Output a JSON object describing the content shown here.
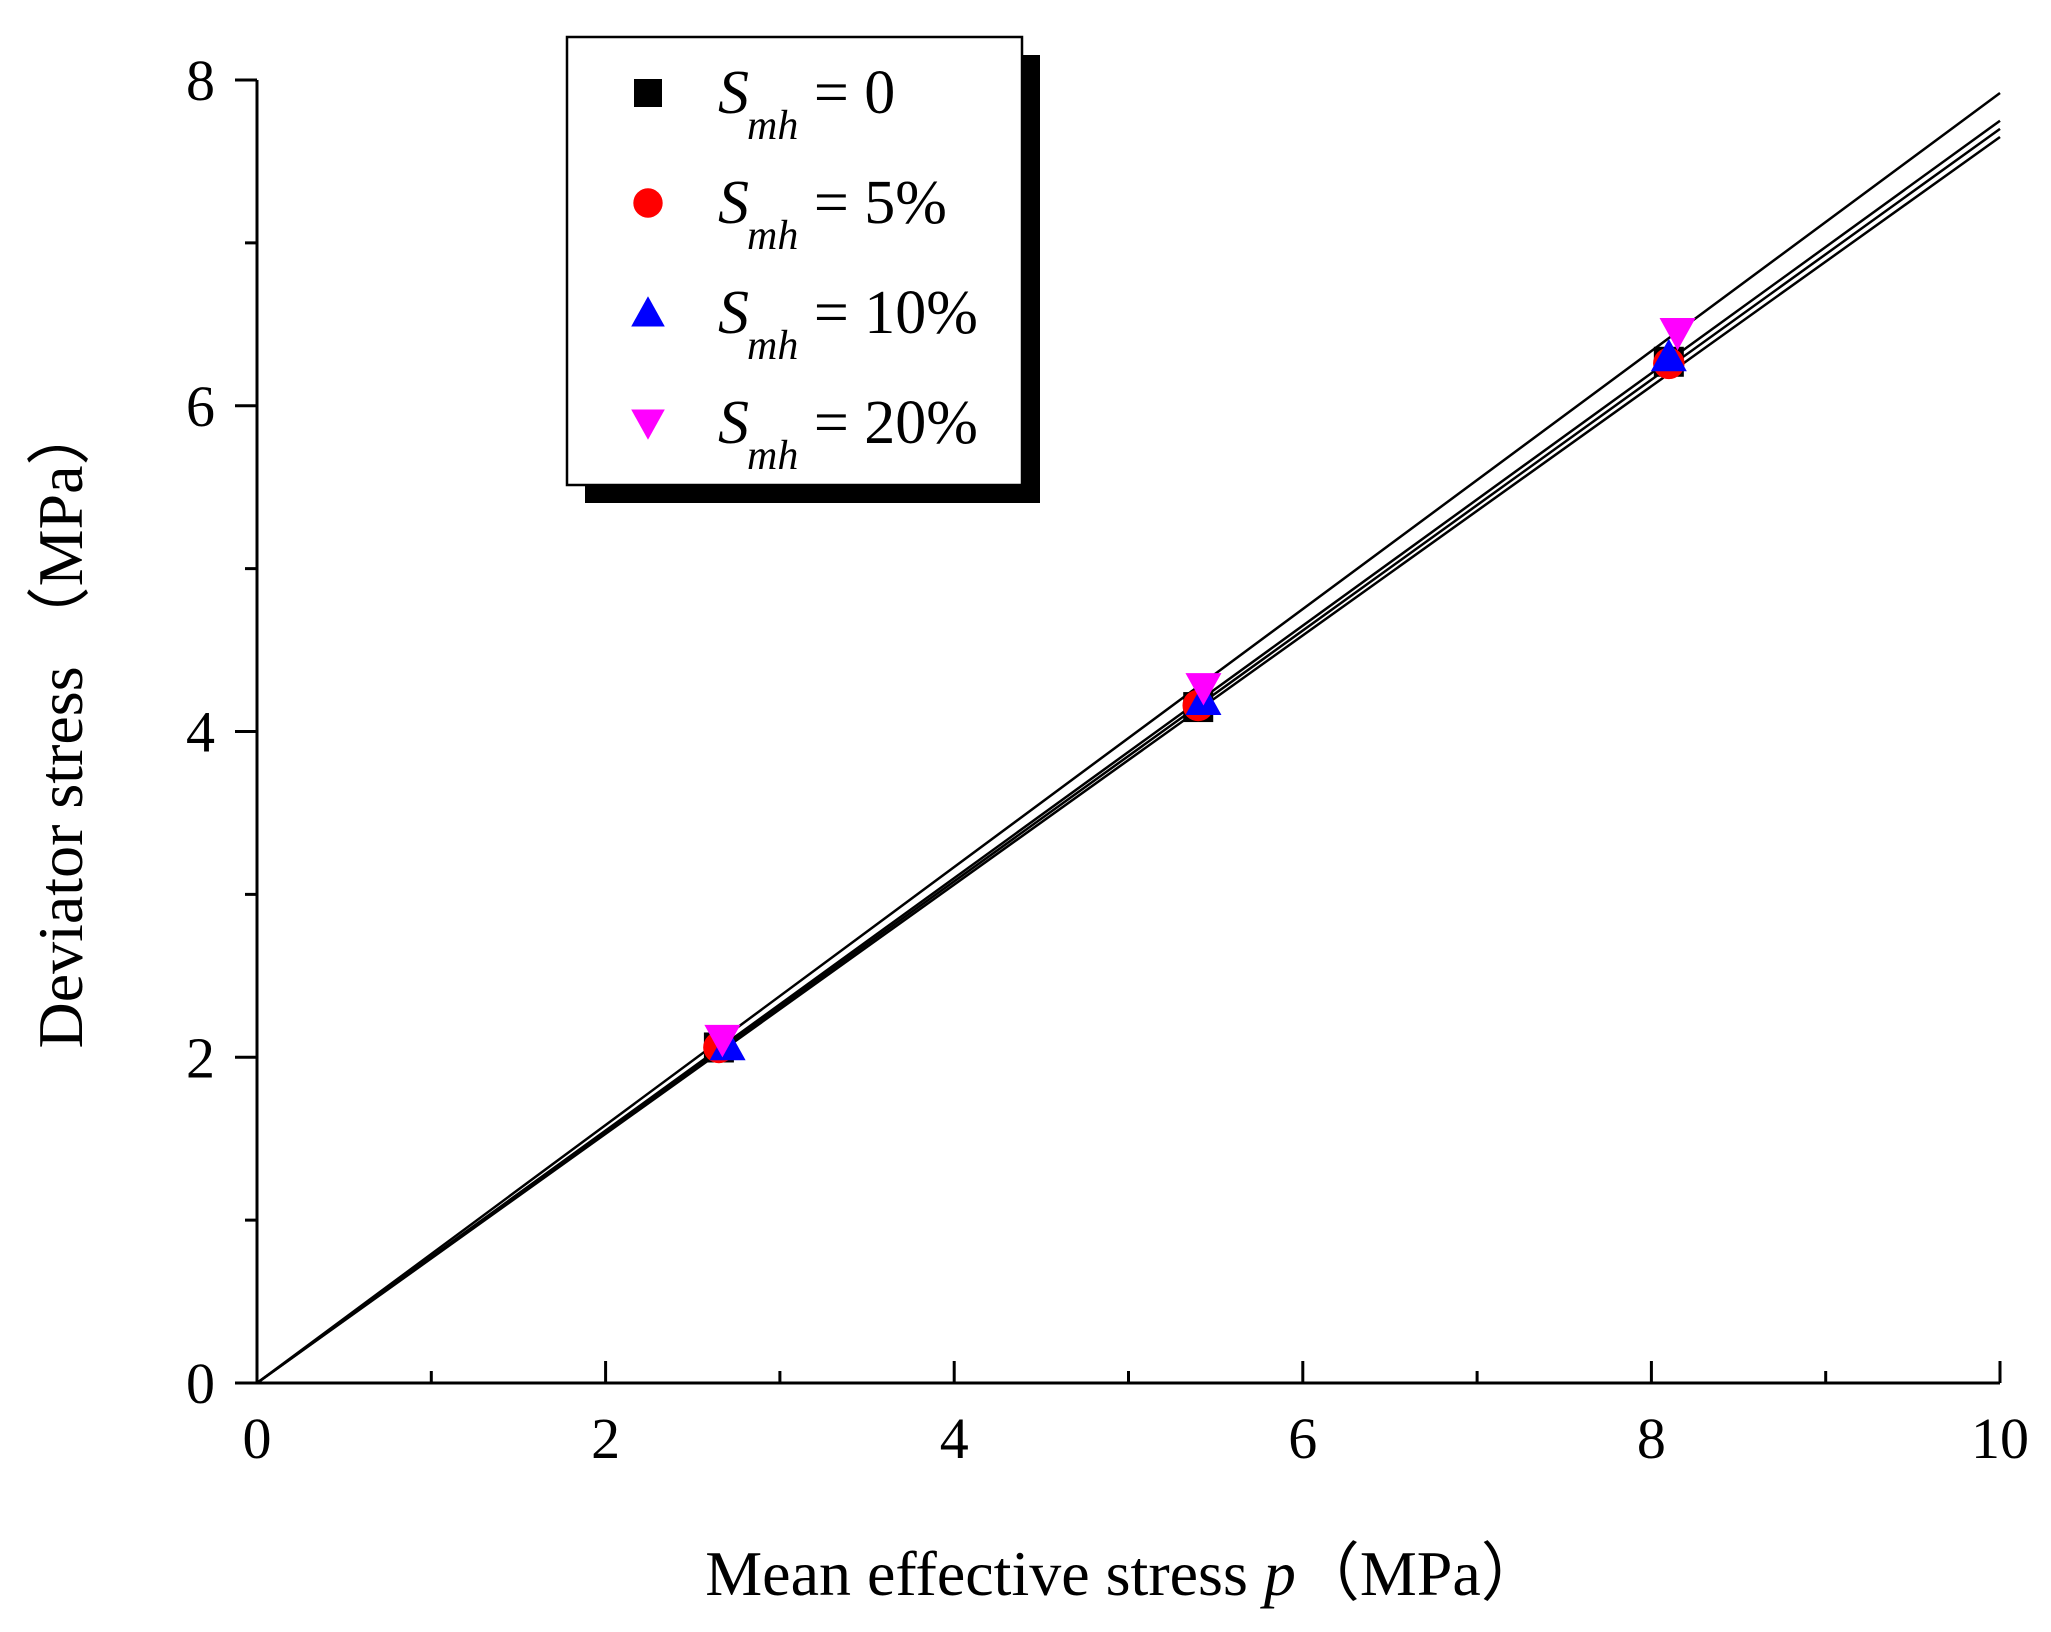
{
  "chart_data": {
    "type": "scatter",
    "title": "",
    "xlabel": "Mean effective stress",
    "xlabel_symbol": "p",
    "xlabel_unit": "（MPa）",
    "ylabel": "Deviator stress",
    "ylabel_unit": "（MPa）",
    "xlim": [
      0,
      10
    ],
    "ylim": [
      0,
      8
    ],
    "xticks": [
      "0",
      "2",
      "4",
      "6",
      "8",
      "10"
    ],
    "yticks": [
      "0",
      "2",
      "4",
      "6",
      "8"
    ],
    "grid": false,
    "legend_position": "top-left",
    "series": [
      {
        "name": "S_mh = 0",
        "legend_var": "S",
        "legend_sub": "mh",
        "legend_rest": " = 0",
        "marker": "square",
        "color": "#000000",
        "points": [
          [
            2.65,
            2.06
          ],
          [
            5.4,
            4.15
          ],
          [
            8.1,
            6.27
          ]
        ],
        "fit_slope": 0.77
      },
      {
        "name": "S_mh = 5%",
        "legend_var": "S",
        "legend_sub": "mh",
        "legend_rest": " = 5%",
        "marker": "circle",
        "color": "#ff0000",
        "points": [
          [
            2.65,
            2.06
          ],
          [
            5.4,
            4.16
          ],
          [
            8.1,
            6.26
          ]
        ],
        "fit_slope": 0.765
      },
      {
        "name": "S_mh = 10%",
        "legend_var": "S",
        "legend_sub": "mh",
        "legend_rest": " = 10%",
        "marker": "triangle-up",
        "color": "#0000ff",
        "points": [
          [
            2.7,
            2.07
          ],
          [
            5.43,
            4.19
          ],
          [
            8.1,
            6.3
          ]
        ],
        "fit_slope": 0.775
      },
      {
        "name": "S_mh = 20%",
        "legend_var": "S",
        "legend_sub": "mh",
        "legend_rest": " = 20%",
        "marker": "triangle-down",
        "color": "#ff00ff",
        "points": [
          [
            2.67,
            2.11
          ],
          [
            5.43,
            4.27
          ],
          [
            8.15,
            6.45
          ]
        ],
        "fit_slope": 0.792
      }
    ]
  }
}
